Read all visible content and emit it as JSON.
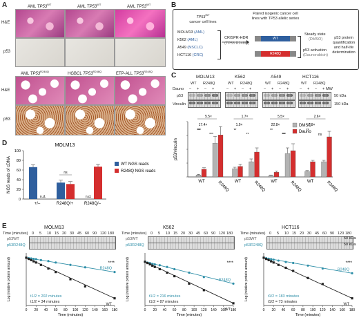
{
  "panelA": {
    "letter": "A",
    "top_titles": [
      "AML TP53WT",
      "AML TP53WT",
      "AML TP53WT"
    ],
    "top_title_base": [
      "AML ",
      "AML ",
      "AML "
    ],
    "top_title_gene": [
      "TP53",
      "TP53",
      "TP53"
    ],
    "top_title_sup": [
      "WT",
      "WT",
      "WT"
    ],
    "bottom_title_base": [
      "AML ",
      "HGBCL ",
      "ETP-ALL "
    ],
    "bottom_title_gene": [
      "TP53",
      "TP53",
      "TP53"
    ],
    "bottom_title_sup": [
      "R248Q",
      "R248Q",
      "R248Q"
    ],
    "row_he": "H&E",
    "row_p53": "p53"
  },
  "panelB": {
    "letter": "B",
    "left_header_gene": "TP53",
    "left_header_sup": "WT",
    "left_header_rest": "cancer cell lines",
    "cell_lines": [
      {
        "name": "MOLM13",
        "type": "(AML)"
      },
      {
        "name": "K562",
        "type": "(AML)"
      },
      {
        "name": "A549",
        "type": "(NSCLC)"
      },
      {
        "name": "HCT116",
        "type": "(CRC)"
      }
    ],
    "crispr": "CRISPR-HDR",
    "crispr_sub": "(TP53 R248Q)",
    "paired_header": "Paired isogenic cancer cell lines with TP53 allelic series",
    "wt_label": "WT",
    "r248q_label": "R248Q",
    "steady": "Steady state",
    "steady_sub": "(DMSO)",
    "activation": "p53 activation",
    "activation_sub": "(Daunorubicin)",
    "result": "p53 protein quantification and half-life determination"
  },
  "panelC": {
    "letter": "C",
    "lines": [
      "MOLM13",
      "K562",
      "A549",
      "HCT116"
    ],
    "dauno_label": "Dauno",
    "dauno_signs": [
      "–",
      "+",
      "–",
      "+"
    ],
    "genotypes": [
      "WT",
      "R248Q"
    ],
    "mw": "MW",
    "p53_label": "p53",
    "vinculin_label": "Vinculin",
    "kda50": "50 kDa",
    "kda150": "150 kDa",
    "ylabel": "p53/vinculin",
    "legend": [
      "DMSO",
      "Dauno"
    ],
    "folds": [
      {
        "top": "5.5×",
        "bottom": "17.4×"
      },
      {
        "top": "1.7×",
        "bottom": "1.9×"
      },
      {
        "top": "5.5×",
        "bottom": "22.8×"
      },
      {
        "top": "2.6×",
        "bottom": "2.9×"
      }
    ],
    "sig": [
      "***",
      "***",
      "**",
      "**",
      "**",
      "**",
      "**",
      "***",
      "**",
      "ns"
    ]
  },
  "panelD": {
    "letter": "D",
    "title": "MOLM13",
    "ylabel": "NGS reads of cDNA",
    "legend": [
      "WT NGS reads",
      "R248Q NGS reads"
    ],
    "nd": "n.d.",
    "ns": "ns",
    "colors": {
      "wt": "#2f5f9e",
      "r248q": "#d42e2e"
    }
  },
  "panelE": {
    "letter": "E",
    "time_label": "Time (minutes)",
    "times": [
      "0",
      "5",
      "10",
      "15",
      "20",
      "30",
      "45",
      "60",
      "90",
      "120",
      "180"
    ],
    "wt_label": "p53WT",
    "mut_label": "p53R248Q",
    "kda": "50 kDa",
    "ylabel": "Log (relative protein amount)",
    "xlabel": "Time (minutes)",
    "stars": "****",
    "panels": [
      {
        "title": "MOLM13",
        "t_mut": "t1/2 = 202 minutes",
        "t_wt": "t1/2 = 34 minutes"
      },
      {
        "title": "K562",
        "t_mut": "t1/2 = 216 minutes",
        "t_wt": "t1/2 = 87 minutes"
      },
      {
        "title": "HCT116",
        "t_mut": "t1/2 = 183 minutes",
        "t_wt": "t1/2 = 73 minutes"
      }
    ]
  },
  "chart_data": [
    {
      "type": "bar",
      "title": "",
      "ylabel": "p53/vinculin",
      "ylim": [
        0,
        2.0
      ],
      "categories": [
        "MOLM13 WT",
        "MOLM13 R248Q",
        "K562 WT",
        "K562 R248Q",
        "A549 WT",
        "A549 R248Q",
        "HCT116 WT",
        "HCT116 R248Q"
      ],
      "series": [
        {
          "name": "DMSO",
          "values": [
            0.07,
            1.22,
            0.3,
            0.55,
            0.05,
            0.85,
            0.2,
            0.55
          ]
        },
        {
          "name": "Dauno",
          "values": [
            0.28,
            1.52,
            0.38,
            0.9,
            0.17,
            0.95,
            0.55,
            1.45
          ]
        }
      ],
      "errors": {
        "DMSO": [
          0.02,
          0.25,
          0.05,
          0.1,
          0.02,
          0.2,
          0.03,
          0.05
        ],
        "Dauno": [
          0.05,
          0.3,
          0.08,
          0.15,
          0.04,
          0.25,
          0.05,
          0.2
        ]
      },
      "colors": {
        "DMSO": "#b3b3b3",
        "Dauno": "#d42e2e"
      }
    },
    {
      "type": "bar",
      "title": "MOLM13",
      "ylabel": "NGS reads of cDNA",
      "ylim": [
        0,
        100
      ],
      "yticks": [
        0,
        20,
        40,
        60,
        80,
        100
      ],
      "categories": [
        "+/–",
        "R248Q/+",
        "R248Q/–"
      ],
      "series": [
        {
          "name": "WT NGS reads",
          "values": [
            66,
            34,
            null
          ]
        },
        {
          "name": "R248Q NGS reads",
          "values": [
            null,
            31,
            67
          ]
        }
      ]
    },
    {
      "type": "line",
      "title": "MOLM13",
      "xlabel": "Time (minutes)",
      "ylabel": "Log (relative protein amount)",
      "xlim": [
        0,
        180
      ],
      "ylim": [
        -2.0,
        0.2
      ],
      "xticks": [
        0,
        20,
        40,
        60,
        80,
        100,
        120,
        140,
        160,
        180
      ],
      "series": [
        {
          "name": "R248Q",
          "x": [
            0,
            5,
            10,
            15,
            20,
            30,
            45,
            60,
            90,
            120,
            180
          ],
          "y": [
            0,
            -0.02,
            -0.03,
            -0.05,
            -0.06,
            -0.1,
            -0.14,
            -0.2,
            -0.3,
            -0.4,
            -0.6
          ]
        },
        {
          "name": "WT",
          "x": [
            0,
            5,
            10,
            15,
            20,
            30,
            45,
            60,
            90,
            120,
            180
          ],
          "y": [
            0,
            -0.05,
            -0.1,
            -0.15,
            -0.2,
            -0.3,
            -0.45,
            -0.6,
            -0.9,
            -1.2,
            -1.7
          ]
        }
      ]
    },
    {
      "type": "line",
      "title": "K562",
      "xlabel": "Time (minutes)",
      "ylabel": "Log (relative protein amount)",
      "xlim": [
        0,
        180
      ],
      "ylim": [
        -1.0,
        0.2
      ],
      "xticks": [
        0,
        20,
        40,
        60,
        80,
        100,
        120,
        140,
        160,
        180
      ],
      "series": [
        {
          "name": "R248Q",
          "x": [
            0,
            5,
            10,
            15,
            20,
            30,
            45,
            60,
            90,
            120,
            180
          ],
          "y": [
            0,
            -0.02,
            -0.03,
            -0.05,
            -0.06,
            -0.08,
            -0.12,
            -0.17,
            -0.25,
            -0.35,
            -0.5
          ]
        },
        {
          "name": "WT",
          "x": [
            0,
            5,
            10,
            15,
            20,
            30,
            45,
            60,
            90,
            120,
            180
          ],
          "y": [
            0,
            -0.03,
            -0.06,
            -0.09,
            -0.12,
            -0.17,
            -0.25,
            -0.33,
            -0.5,
            -0.65,
            -0.95
          ]
        }
      ]
    },
    {
      "type": "line",
      "title": "HCT116",
      "xlabel": "Time (minutes)",
      "ylabel": "Log (relative protein amount)",
      "xlim": [
        0,
        180
      ],
      "ylim": [
        -2.0,
        0.2
      ],
      "xticks": [
        0,
        20,
        40,
        60,
        80,
        100,
        120,
        140,
        160,
        180
      ],
      "series": [
        {
          "name": "R248Q",
          "x": [
            0,
            5,
            10,
            15,
            20,
            30,
            45,
            60,
            90,
            120,
            180
          ],
          "y": [
            0,
            -0.02,
            -0.04,
            -0.06,
            -0.08,
            -0.12,
            -0.18,
            -0.22,
            -0.33,
            -0.45,
            -0.65
          ]
        },
        {
          "name": "WT",
          "x": [
            0,
            5,
            10,
            15,
            20,
            30,
            45,
            60,
            90,
            120,
            180
          ],
          "y": [
            0,
            -0.05,
            -0.1,
            -0.15,
            -0.2,
            -0.3,
            -0.42,
            -0.55,
            -0.85,
            -1.1,
            -1.7
          ]
        }
      ]
    }
  ]
}
